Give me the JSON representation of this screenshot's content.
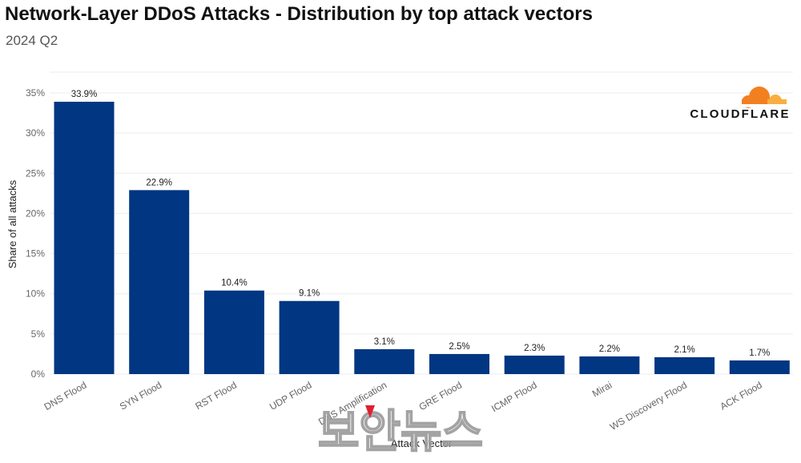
{
  "title": "Network-Layer DDoS Attacks - Distribution by top attack vectors",
  "subtitle": "2024 Q2",
  "brand": "CLOUDFLARE",
  "watermark": "보안뉴스",
  "colors": {
    "bar": "#003682",
    "grid": "#eeeeee",
    "logo_orange": "#f38020",
    "logo_light": "#faae40",
    "watermark_pin": "#e02030"
  },
  "chart_data": {
    "type": "bar",
    "xlabel": "Attack Vector",
    "ylabel": "Share of all attacks",
    "ylim": [
      0,
      35
    ],
    "yticks": [
      "0%",
      "5%",
      "10%",
      "15%",
      "20%",
      "25%",
      "30%",
      "35%"
    ],
    "categories": [
      "DNS Flood",
      "SYN Flood",
      "RST Flood",
      "UDP Flood",
      "DNS Amplification",
      "GRE Flood",
      "ICMP Flood",
      "Mirai",
      "WS Discovery Flood",
      "ACK Flood"
    ],
    "values": [
      33.9,
      22.9,
      10.4,
      9.1,
      3.1,
      2.5,
      2.3,
      2.2,
      2.1,
      1.7
    ],
    "labels": [
      "33.9%",
      "22.9%",
      "10.4%",
      "9.1%",
      "3.1%",
      "2.5%",
      "2.3%",
      "2.2%",
      "2.1%",
      "1.7%"
    ],
    "grid": true,
    "legend": "none"
  }
}
